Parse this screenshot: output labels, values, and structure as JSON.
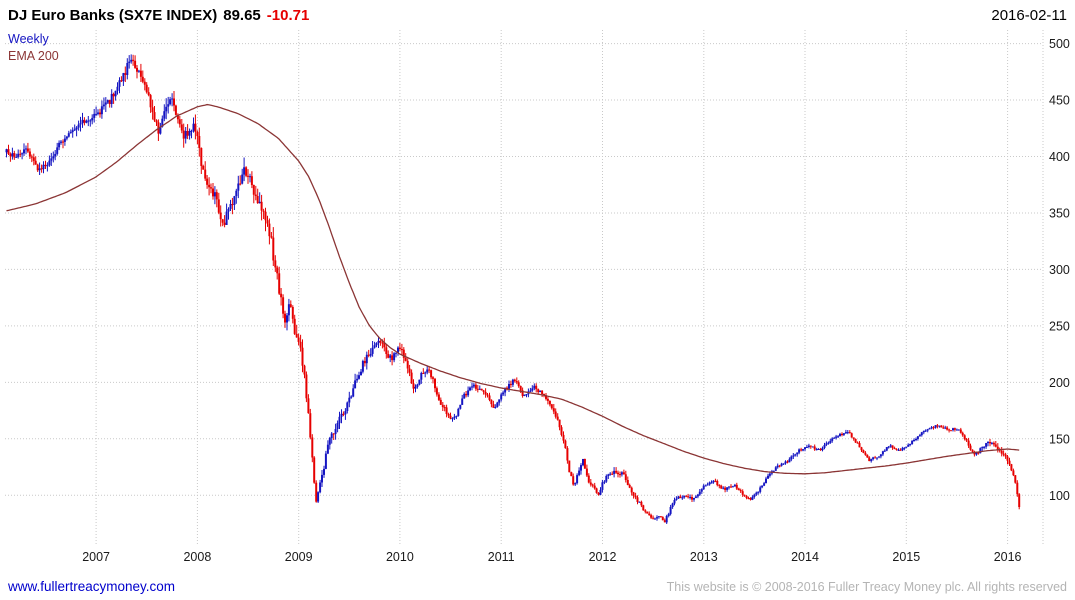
{
  "header": {
    "title": "DJ Euro Banks (SX7E INDEX)",
    "last_price": "89.65",
    "change": "-10.71",
    "date": "2016-02-11"
  },
  "legend": {
    "series": "Weekly",
    "overlay": "EMA 200"
  },
  "footer": {
    "link": "www.fullertreacymoney.com",
    "copyright": "This website is © 2008-2016 Fuller Treacy Money plc. All rights reserved"
  },
  "colors": {
    "up_candle": "#1515c2",
    "down_candle": "#e60000",
    "ema_line": "#8b3535",
    "grid": "#c9c9c9",
    "change_text": "#e60000",
    "link": "#0000cc",
    "copyright": "#b4b4b4"
  },
  "chart_data": {
    "type": "candlestick",
    "title": "DJ Euro Banks (SX7E INDEX)",
    "frequency": "Weekly",
    "overlay": "EMA 200",
    "last_close": 89.65,
    "change": -10.71,
    "as_of_date": "2016-02-11",
    "x_ticks": [
      2007,
      2008,
      2009,
      2010,
      2011,
      2012,
      2013,
      2014,
      2015,
      2016
    ],
    "y_ticks": [
      100,
      150,
      200,
      250,
      300,
      350,
      400,
      450,
      500
    ],
    "x_range": [
      2006.1,
      2016.35
    ],
    "y_range": [
      56,
      512
    ],
    "data_start": 2006.115,
    "data_end": 2016.125,
    "grid": "dotted",
    "legend_position": "top-left",
    "axis_labels_position": "right",
    "price_anchors": [
      [
        2006.12,
        405
      ],
      [
        2006.2,
        400
      ],
      [
        2006.3,
        408
      ],
      [
        2006.44,
        388
      ],
      [
        2006.55,
        398
      ],
      [
        2006.73,
        422
      ],
      [
        2006.85,
        430
      ],
      [
        2007.0,
        436
      ],
      [
        2007.13,
        449
      ],
      [
        2007.25,
        468
      ],
      [
        2007.33,
        485
      ],
      [
        2007.4,
        478
      ],
      [
        2007.52,
        453
      ],
      [
        2007.62,
        422
      ],
      [
        2007.72,
        452
      ],
      [
        2007.8,
        438
      ],
      [
        2007.87,
        418
      ],
      [
        2007.97,
        430
      ],
      [
        2008.07,
        378
      ],
      [
        2008.17,
        365
      ],
      [
        2008.26,
        340
      ],
      [
        2008.35,
        362
      ],
      [
        2008.41,
        374
      ],
      [
        2008.47,
        388
      ],
      [
        2008.55,
        372
      ],
      [
        2008.61,
        356
      ],
      [
        2008.71,
        334
      ],
      [
        2008.81,
        281
      ],
      [
        2008.86,
        254
      ],
      [
        2008.91,
        272
      ],
      [
        2008.96,
        246
      ],
      [
        2009.0,
        237
      ],
      [
        2009.05,
        210
      ],
      [
        2009.1,
        166
      ],
      [
        2009.17,
        95
      ],
      [
        2009.22,
        113
      ],
      [
        2009.3,
        148
      ],
      [
        2009.4,
        166
      ],
      [
        2009.5,
        184
      ],
      [
        2009.55,
        197
      ],
      [
        2009.65,
        219
      ],
      [
        2009.75,
        232
      ],
      [
        2009.8,
        238
      ],
      [
        2009.85,
        228
      ],
      [
        2009.92,
        220
      ],
      [
        2009.99,
        232
      ],
      [
        2010.04,
        223
      ],
      [
        2010.14,
        193
      ],
      [
        2010.2,
        206
      ],
      [
        2010.29,
        211
      ],
      [
        2010.39,
        184
      ],
      [
        2010.48,
        171
      ],
      [
        2010.53,
        166
      ],
      [
        2010.63,
        188
      ],
      [
        2010.73,
        197
      ],
      [
        2010.83,
        193
      ],
      [
        2010.93,
        175
      ],
      [
        2011.03,
        193
      ],
      [
        2011.13,
        202
      ],
      [
        2011.22,
        188
      ],
      [
        2011.32,
        197
      ],
      [
        2011.42,
        188
      ],
      [
        2011.52,
        175
      ],
      [
        2011.62,
        148
      ],
      [
        2011.67,
        122
      ],
      [
        2011.72,
        109
      ],
      [
        2011.77,
        122
      ],
      [
        2011.81,
        131
      ],
      [
        2011.86,
        113
      ],
      [
        2011.96,
        100
      ],
      [
        2012.01,
        113
      ],
      [
        2012.11,
        122
      ],
      [
        2012.21,
        118
      ],
      [
        2012.31,
        100
      ],
      [
        2012.41,
        87
      ],
      [
        2012.51,
        78
      ],
      [
        2012.56,
        82
      ],
      [
        2012.61,
        76
      ],
      [
        2012.71,
        96
      ],
      [
        2012.8,
        100
      ],
      [
        2012.9,
        96
      ],
      [
        2013.0,
        109
      ],
      [
        2013.1,
        113
      ],
      [
        2013.2,
        105
      ],
      [
        2013.3,
        109
      ],
      [
        2013.4,
        100
      ],
      [
        2013.45,
        96
      ],
      [
        2013.55,
        105
      ],
      [
        2013.64,
        118
      ],
      [
        2013.74,
        126
      ],
      [
        2013.84,
        131
      ],
      [
        2013.94,
        140
      ],
      [
        2014.04,
        144
      ],
      [
        2014.14,
        140
      ],
      [
        2014.24,
        148
      ],
      [
        2014.33,
        153
      ],
      [
        2014.43,
        156
      ],
      [
        2014.53,
        144
      ],
      [
        2014.63,
        131
      ],
      [
        2014.73,
        135
      ],
      [
        2014.83,
        144
      ],
      [
        2014.93,
        140
      ],
      [
        2015.02,
        144
      ],
      [
        2015.12,
        153
      ],
      [
        2015.22,
        159
      ],
      [
        2015.32,
        162
      ],
      [
        2015.42,
        158
      ],
      [
        2015.52,
        159
      ],
      [
        2015.62,
        144
      ],
      [
        2015.67,
        135
      ],
      [
        2015.77,
        144
      ],
      [
        2015.82,
        148
      ],
      [
        2015.92,
        140
      ],
      [
        2015.97,
        135
      ],
      [
        2016.02,
        126
      ],
      [
        2016.07,
        113
      ],
      [
        2016.12,
        89.65
      ]
    ],
    "ema_anchors": [
      [
        2006.12,
        352
      ],
      [
        2006.4,
        358
      ],
      [
        2006.7,
        368
      ],
      [
        2007.0,
        382
      ],
      [
        2007.2,
        395
      ],
      [
        2007.4,
        410
      ],
      [
        2007.6,
        424
      ],
      [
        2007.8,
        436
      ],
      [
        2008.0,
        444
      ],
      [
        2008.1,
        446
      ],
      [
        2008.2,
        444
      ],
      [
        2008.4,
        438
      ],
      [
        2008.6,
        429
      ],
      [
        2008.8,
        416
      ],
      [
        2009.0,
        396
      ],
      [
        2009.1,
        382
      ],
      [
        2009.2,
        362
      ],
      [
        2009.3,
        338
      ],
      [
        2009.4,
        312
      ],
      [
        2009.5,
        288
      ],
      [
        2009.6,
        266
      ],
      [
        2009.7,
        250
      ],
      [
        2009.8,
        239
      ],
      [
        2009.9,
        231
      ],
      [
        2010.0,
        225
      ],
      [
        2010.2,
        217
      ],
      [
        2010.4,
        210
      ],
      [
        2010.6,
        204
      ],
      [
        2010.8,
        199
      ],
      [
        2011.0,
        195
      ],
      [
        2011.2,
        192
      ],
      [
        2011.4,
        189
      ],
      [
        2011.6,
        185
      ],
      [
        2011.8,
        178
      ],
      [
        2012.0,
        170
      ],
      [
        2012.2,
        161
      ],
      [
        2012.4,
        153
      ],
      [
        2012.6,
        146
      ],
      [
        2012.8,
        139
      ],
      [
        2013.0,
        133
      ],
      [
        2013.2,
        128
      ],
      [
        2013.4,
        124
      ],
      [
        2013.6,
        121
      ],
      [
        2013.8,
        119.5
      ],
      [
        2014.0,
        119
      ],
      [
        2014.2,
        120
      ],
      [
        2014.4,
        122
      ],
      [
        2014.6,
        124
      ],
      [
        2014.8,
        126
      ],
      [
        2015.0,
        128.5
      ],
      [
        2015.2,
        131.5
      ],
      [
        2015.4,
        134.5
      ],
      [
        2015.6,
        137
      ],
      [
        2015.8,
        139.5
      ],
      [
        2016.0,
        141
      ],
      [
        2016.12,
        140
      ]
    ],
    "volatility_anchors": [
      [
        2006.2,
        0.013
      ],
      [
        2007.3,
        0.016
      ],
      [
        2008.2,
        0.022
      ],
      [
        2008.9,
        0.032
      ],
      [
        2009.25,
        0.04
      ],
      [
        2009.8,
        0.024
      ],
      [
        2010.5,
        0.02
      ],
      [
        2011.3,
        0.016
      ],
      [
        2011.8,
        0.03
      ],
      [
        2012.5,
        0.028
      ],
      [
        2013.5,
        0.018
      ],
      [
        2014.5,
        0.013
      ],
      [
        2015.5,
        0.013
      ],
      [
        2016.1,
        0.028
      ]
    ]
  }
}
